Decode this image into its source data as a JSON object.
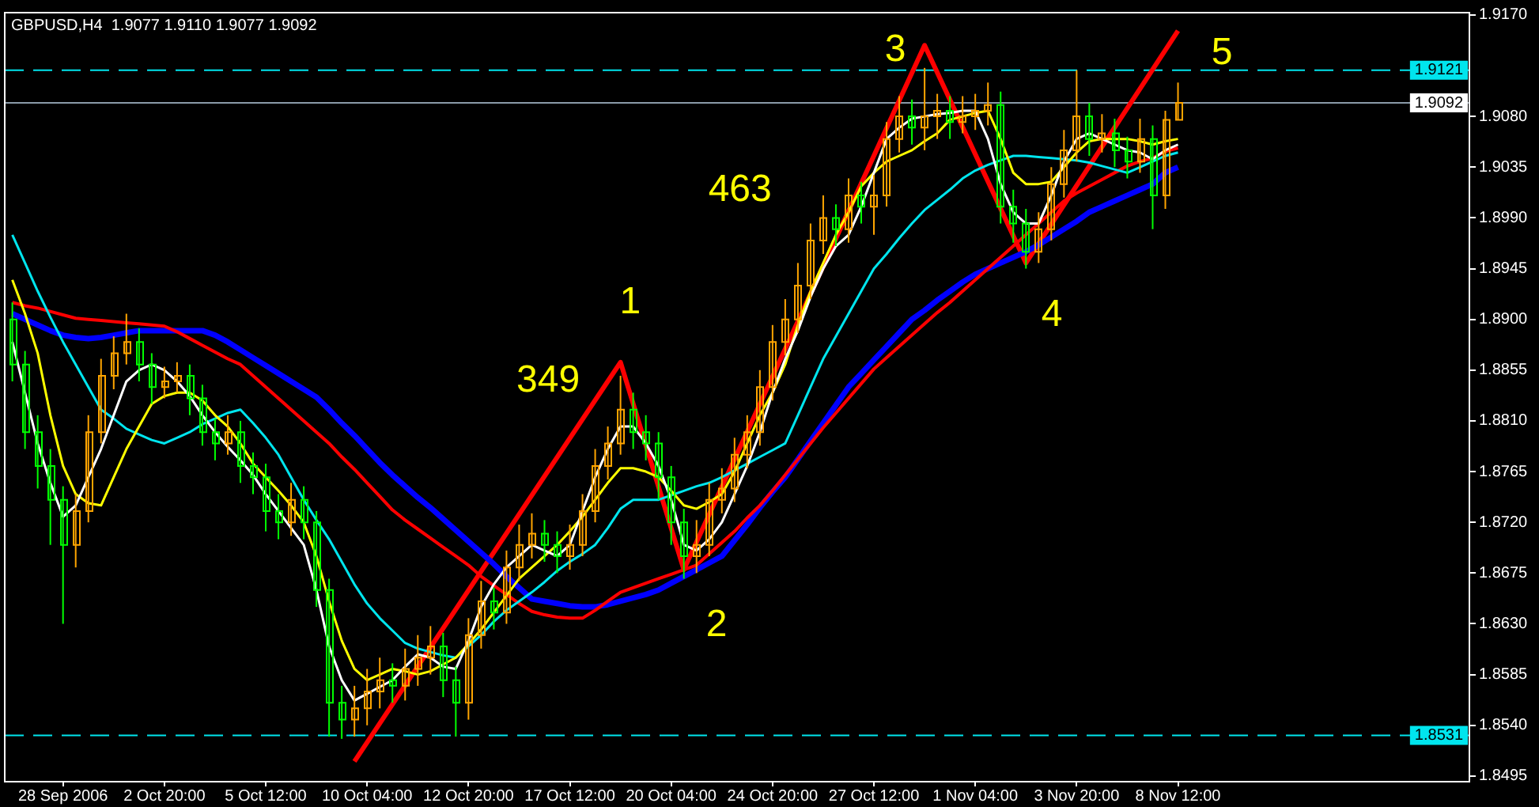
{
  "chart_data": {
    "type": "candlestick",
    "title": "GBPUSD,H4  1.9077 1.9110 1.9077 1.9092",
    "categories": [
      null,
      null,
      null,
      null,
      "28 Sep 2006",
      null,
      null,
      null,
      null,
      null,
      null,
      null,
      "2 Oct 20:00",
      null,
      null,
      null,
      null,
      null,
      null,
      null,
      "5 Oct 12:00",
      null,
      null,
      null,
      null,
      null,
      null,
      null,
      "10 Oct 04:00",
      null,
      null,
      null,
      null,
      null,
      null,
      null,
      "12 Oct 20:00",
      null,
      null,
      null,
      null,
      null,
      null,
      null,
      "17 Oct 12:00",
      null,
      null,
      null,
      null,
      null,
      null,
      null,
      "20 Oct 04:00",
      null,
      null,
      null,
      null,
      null,
      null,
      null,
      "24 Oct 20:00",
      null,
      null,
      null,
      null,
      null,
      null,
      null,
      "27 Oct 12:00",
      null,
      null,
      null,
      null,
      null,
      null,
      null,
      "1 Nov 04:00",
      null,
      null,
      null,
      null,
      null,
      null,
      null,
      "3 Nov 20:00",
      null,
      null,
      null,
      null,
      null,
      null,
      null,
      "8 Nov 12:00"
    ],
    "ohlc": [
      [
        1.89,
        1.8915,
        1.8845,
        1.886
      ],
      [
        1.886,
        1.8872,
        1.8785,
        1.88
      ],
      [
        1.88,
        1.8815,
        1.875,
        1.877
      ],
      [
        1.877,
        1.8785,
        1.87,
        1.874
      ],
      [
        1.874,
        1.8752,
        1.863,
        1.87
      ],
      [
        1.87,
        1.8745,
        1.868,
        1.873
      ],
      [
        1.873,
        1.8815,
        1.872,
        1.88
      ],
      [
        1.88,
        1.8865,
        1.879,
        1.885
      ],
      [
        1.885,
        1.8885,
        1.8838,
        1.887
      ],
      [
        1.887,
        1.8905,
        1.886,
        1.888
      ],
      [
        1.888,
        1.8892,
        1.8845,
        1.886
      ],
      [
        1.886,
        1.887,
        1.8825,
        1.884
      ],
      [
        1.884,
        1.8858,
        1.883,
        1.8845
      ],
      [
        1.8845,
        1.8862,
        1.8835,
        1.885
      ],
      [
        1.885,
        1.886,
        1.8815,
        1.883
      ],
      [
        1.883,
        1.8842,
        1.8788,
        1.88
      ],
      [
        1.88,
        1.8812,
        1.8775,
        1.879
      ],
      [
        1.879,
        1.8815,
        1.878,
        1.88
      ],
      [
        1.88,
        1.881,
        1.8755,
        1.877
      ],
      [
        1.877,
        1.8782,
        1.8745,
        1.876
      ],
      [
        1.876,
        1.8772,
        1.8712,
        1.873
      ],
      [
        1.873,
        1.8745,
        1.8705,
        1.872
      ],
      [
        1.872,
        1.8755,
        1.8708,
        1.874
      ],
      [
        1.874,
        1.8752,
        1.8705,
        1.872
      ],
      [
        1.872,
        1.873,
        1.8645,
        1.866
      ],
      [
        1.866,
        1.867,
        1.853,
        1.856
      ],
      [
        1.856,
        1.8575,
        1.8528,
        1.8545
      ],
      [
        1.8545,
        1.8575,
        1.853,
        1.8555
      ],
      [
        1.8555,
        1.859,
        1.854,
        1.857
      ],
      [
        1.857,
        1.86,
        1.8555,
        1.858
      ],
      [
        1.858,
        1.8595,
        1.856,
        1.8575
      ],
      [
        1.8575,
        1.8608,
        1.8562,
        1.859
      ],
      [
        1.859,
        1.862,
        1.8575,
        1.86
      ],
      [
        1.86,
        1.8628,
        1.8585,
        1.861
      ],
      [
        1.861,
        1.8622,
        1.8565,
        1.858
      ],
      [
        1.858,
        1.8592,
        1.853,
        1.856
      ],
      [
        1.856,
        1.8635,
        1.8545,
        1.862
      ],
      [
        1.862,
        1.8668,
        1.8608,
        1.865
      ],
      [
        1.865,
        1.8662,
        1.8625,
        1.864
      ],
      [
        1.864,
        1.8695,
        1.863,
        1.868
      ],
      [
        1.868,
        1.8718,
        1.8668,
        1.87
      ],
      [
        1.87,
        1.8728,
        1.8688,
        1.871
      ],
      [
        1.871,
        1.8722,
        1.8685,
        1.87
      ],
      [
        1.87,
        1.8712,
        1.8675,
        1.869
      ],
      [
        1.869,
        1.8718,
        1.8678,
        1.87
      ],
      [
        1.87,
        1.8745,
        1.869,
        1.873
      ],
      [
        1.873,
        1.8785,
        1.872,
        1.877
      ],
      [
        1.877,
        1.8805,
        1.8758,
        1.879
      ],
      [
        1.879,
        1.885,
        1.878,
        1.882
      ],
      [
        1.882,
        1.8835,
        1.8785,
        1.88
      ],
      [
        1.88,
        1.8815,
        1.8775,
        1.879
      ],
      [
        1.879,
        1.88,
        1.874,
        1.876
      ],
      [
        1.876,
        1.877,
        1.87,
        1.872
      ],
      [
        1.872,
        1.8732,
        1.867,
        1.869
      ],
      [
        1.869,
        1.8722,
        1.8675,
        1.87
      ],
      [
        1.87,
        1.8755,
        1.869,
        1.874
      ],
      [
        1.874,
        1.8768,
        1.8728,
        1.875
      ],
      [
        1.875,
        1.8795,
        1.8738,
        1.878
      ],
      [
        1.878,
        1.8815,
        1.8768,
        1.88
      ],
      [
        1.88,
        1.8855,
        1.8788,
        1.884
      ],
      [
        1.884,
        1.8895,
        1.8828,
        1.888
      ],
      [
        1.888,
        1.8918,
        1.8868,
        1.89
      ],
      [
        1.89,
        1.895,
        1.8888,
        1.893
      ],
      [
        1.893,
        1.8985,
        1.8918,
        1.897
      ],
      [
        1.897,
        1.901,
        1.8958,
        1.899
      ],
      [
        1.899,
        1.9002,
        1.8965,
        1.898
      ],
      [
        1.898,
        1.9025,
        1.8968,
        1.901
      ],
      [
        1.901,
        1.9022,
        1.8985,
        1.9
      ],
      [
        1.9,
        1.9028,
        1.8975,
        1.901
      ],
      [
        1.901,
        1.9075,
        1.9,
        1.906
      ],
      [
        1.906,
        1.9098,
        1.9048,
        1.908
      ],
      [
        1.908,
        1.9095,
        1.9055,
        1.907
      ],
      [
        1.907,
        1.9123,
        1.905,
        1.908
      ],
      [
        1.908,
        1.91,
        1.906,
        1.9085
      ],
      [
        1.9085,
        1.9098,
        1.906,
        1.9075
      ],
      [
        1.9075,
        1.9098,
        1.9065,
        1.908
      ],
      [
        1.908,
        1.91,
        1.9068,
        1.9085
      ],
      [
        1.9085,
        1.911,
        1.9072,
        1.909
      ],
      [
        1.909,
        1.9102,
        1.8985,
        1.9
      ],
      [
        1.9,
        1.9015,
        1.8968,
        1.8985
      ],
      [
        1.8985,
        1.8998,
        1.8945,
        1.896
      ],
      [
        1.896,
        1.8995,
        1.895,
        1.898
      ],
      [
        1.898,
        1.9035,
        1.897,
        1.902
      ],
      [
        1.902,
        1.9068,
        1.9008,
        1.905
      ],
      [
        1.905,
        1.9121,
        1.904,
        1.908
      ],
      [
        1.908,
        1.9092,
        1.9045,
        1.906
      ],
      [
        1.906,
        1.9082,
        1.9048,
        1.9065
      ],
      [
        1.9065,
        1.9078,
        1.9035,
        1.905
      ],
      [
        1.905,
        1.9062,
        1.9025,
        1.904
      ],
      [
        1.904,
        1.9078,
        1.903,
        1.906
      ],
      [
        1.906,
        1.9072,
        1.898,
        1.901
      ],
      [
        1.901,
        1.9085,
        1.8998,
        1.9077
      ],
      [
        1.9077,
        1.911,
        1.9077,
        1.9092
      ]
    ],
    "colors": [
      "#00ff00",
      "#00ff00",
      "#00ff00",
      "#00ff00",
      "#00ff00",
      "#ffa500",
      "#ffa500",
      "#ffa500",
      "#ffa500",
      "#ffa500",
      "#00ff00",
      "#00ff00",
      "#ffa500",
      "#ffa500",
      "#00ff00",
      "#00ff00",
      "#00ff00",
      "#ffa500",
      "#00ff00",
      "#00ff00",
      "#00ff00",
      "#00ff00",
      "#ffa500",
      "#00ff00",
      "#00ff00",
      "#00ff00",
      "#00ff00",
      "#ffa500",
      "#ffa500",
      "#ffa500",
      "#00ff00",
      "#ffa500",
      "#ffa500",
      "#ffa500",
      "#00ff00",
      "#00ff00",
      "#ffa500",
      "#ffa500",
      "#00ff00",
      "#ffa500",
      "#ffa500",
      "#ffa500",
      "#00ff00",
      "#00ff00",
      "#ffa500",
      "#ffa500",
      "#ffa500",
      "#ffa500",
      "#ffa500",
      "#00ff00",
      "#00ff00",
      "#00ff00",
      "#00ff00",
      "#00ff00",
      "#ffa500",
      "#ffa500",
      "#ffa500",
      "#ffa500",
      "#ffa500",
      "#ffa500",
      "#ffa500",
      "#ffa500",
      "#ffa500",
      "#ffa500",
      "#ffa500",
      "#00ff00",
      "#ffa500",
      "#00ff00",
      "#ffa500",
      "#ffa500",
      "#ffa500",
      "#00ff00",
      "#ffa500",
      "#ffa500",
      "#00ff00",
      "#ffa500",
      "#ffa500",
      "#ffa500",
      "#00ff00",
      "#00ff00",
      "#00ff00",
      "#ffa500",
      "#ffa500",
      "#ffa500",
      "#ffa500",
      "#00ff00",
      "#ffa500",
      "#00ff00",
      "#00ff00",
      "#ffa500",
      "#00ff00",
      "#ffa500",
      "#ffa500"
    ],
    "series": [
      {
        "type": "line",
        "color": "#ffffff",
        "values": [
          1.888,
          1.8835,
          1.879,
          1.8755,
          1.8725,
          1.8735,
          1.876,
          1.8785,
          1.8815,
          1.8845,
          1.8855,
          1.886,
          1.8855,
          1.8845,
          1.8832,
          1.8815,
          1.88,
          1.8787,
          1.8775,
          1.8762,
          1.8745,
          1.873,
          1.8715,
          1.87,
          1.866,
          1.861,
          1.858,
          1.8562,
          1.8568,
          1.8574,
          1.858,
          1.8592,
          1.8603,
          1.86,
          1.8592,
          1.859,
          1.8615,
          1.8645,
          1.8665,
          1.868,
          1.869,
          1.87,
          1.8695,
          1.869,
          1.87,
          1.873,
          1.876,
          1.8785,
          1.8805,
          1.8805,
          1.879,
          1.877,
          1.874,
          1.87,
          1.8695,
          1.8705,
          1.872,
          1.8745,
          1.877,
          1.88,
          1.8835,
          1.8865,
          1.889,
          1.892,
          1.8945,
          1.8965,
          1.8975,
          1.9,
          1.903,
          1.906,
          1.907,
          1.9078,
          1.908,
          1.9082,
          1.9083,
          1.9085,
          1.9085,
          1.906,
          1.902,
          1.8995,
          1.8985,
          1.8985,
          1.901,
          1.904,
          1.906,
          1.9065,
          1.906,
          1.9055,
          1.905,
          1.9048,
          1.9042,
          1.905,
          1.9055
        ]
      },
      {
        "type": "line",
        "color": "#ffff00",
        "values": [
          1.8935,
          1.8905,
          1.887,
          1.8815,
          1.877,
          1.8745,
          1.8737,
          1.8735,
          1.876,
          1.8785,
          1.8805,
          1.8825,
          1.8832,
          1.8835,
          1.8835,
          1.8828,
          1.8815,
          1.8805,
          1.879,
          1.8772,
          1.876,
          1.8748,
          1.8735,
          1.872,
          1.869,
          1.865,
          1.8615,
          1.859,
          1.858,
          1.8585,
          1.859,
          1.8588,
          1.8585,
          1.8588,
          1.8594,
          1.86,
          1.8612,
          1.8625,
          1.864,
          1.8655,
          1.867,
          1.868,
          1.869,
          1.87,
          1.8712,
          1.8725,
          1.874,
          1.8755,
          1.8768,
          1.8768,
          1.8765,
          1.876,
          1.8748,
          1.8735,
          1.8732,
          1.8738,
          1.8745,
          1.8765,
          1.879,
          1.8815,
          1.8835,
          1.886,
          1.8895,
          1.8925,
          1.895,
          1.8975,
          1.8995,
          1.9018,
          1.903,
          1.904,
          1.9045,
          1.905,
          1.9058,
          1.9065,
          1.9077,
          1.908,
          1.9083,
          1.9085,
          1.906,
          1.903,
          1.902,
          1.902,
          1.9022,
          1.9035,
          1.9048,
          1.9058,
          1.906,
          1.906,
          1.906,
          1.9058,
          1.9055,
          1.9058,
          1.906
        ]
      },
      {
        "type": "line",
        "color": "#00e5ee",
        "values": [
          1.8975,
          1.895,
          1.8925,
          1.8902,
          1.888,
          1.886,
          1.884,
          1.882,
          1.8812,
          1.8803,
          1.8798,
          1.8793,
          1.879,
          1.8795,
          1.88,
          1.8807,
          1.8812,
          1.8817,
          1.882,
          1.8808,
          1.8795,
          1.878,
          1.876,
          1.874,
          1.8722,
          1.8705,
          1.8685,
          1.8665,
          1.8648,
          1.8635,
          1.8624,
          1.8613,
          1.8608,
          1.8605,
          1.8602,
          1.86,
          1.861,
          1.862,
          1.8632,
          1.8642,
          1.865,
          1.8658,
          1.8667,
          1.8677,
          1.8685,
          1.8692,
          1.87,
          1.8715,
          1.8732,
          1.874,
          1.874,
          1.874,
          1.8744,
          1.8748,
          1.8752,
          1.8755,
          1.876,
          1.8766,
          1.8772,
          1.8778,
          1.8784,
          1.879,
          1.8815,
          1.884,
          1.8865,
          1.8885,
          1.8905,
          1.8925,
          1.8945,
          1.8958,
          1.8972,
          1.8985,
          1.8997,
          1.9006,
          1.9015,
          1.9025,
          1.9032,
          1.9037,
          1.9041,
          1.9045,
          1.9045,
          1.9044,
          1.9043,
          1.9042,
          1.9041,
          1.9039,
          1.9036,
          1.9033,
          1.903,
          1.9035,
          1.904,
          1.9045,
          1.9048
        ]
      },
      {
        "type": "line",
        "color": "#ff0000",
        "values": [
          1.8915,
          1.8912,
          1.891,
          1.8907,
          1.8904,
          1.8901,
          1.89,
          1.8899,
          1.8898,
          1.8897,
          1.8896,
          1.8895,
          1.8894,
          1.8889,
          1.8883,
          1.8877,
          1.8871,
          1.8865,
          1.886,
          1.885,
          1.884,
          1.883,
          1.882,
          1.881,
          1.88,
          1.879,
          1.8778,
          1.8767,
          1.8755,
          1.8743,
          1.8731,
          1.8722,
          1.8714,
          1.8706,
          1.8698,
          1.869,
          1.8682,
          1.8672,
          1.8664,
          1.8656,
          1.8648,
          1.8641,
          1.8638,
          1.8636,
          1.8635,
          1.8635,
          1.8642,
          1.865,
          1.8658,
          1.8662,
          1.8666,
          1.867,
          1.8674,
          1.8678,
          1.8682,
          1.8692,
          1.8702,
          1.8712,
          1.8724,
          1.8735,
          1.8748,
          1.8762,
          1.8776,
          1.879,
          1.8804,
          1.8817,
          1.883,
          1.8843,
          1.8856,
          1.8866,
          1.8876,
          1.8886,
          1.8896,
          1.8906,
          1.8915,
          1.8925,
          1.8935,
          1.8945,
          1.8955,
          1.8965,
          1.8975,
          1.8985,
          1.8995,
          1.9005,
          1.9012,
          1.9018,
          1.9024,
          1.903,
          1.9036,
          1.904,
          1.9043,
          1.9049,
          1.9052
        ]
      },
      {
        "type": "line",
        "color": "#0000ff",
        "values": [
          1.8905,
          1.89,
          1.8895,
          1.889,
          1.8886,
          1.8884,
          1.8883,
          1.8884,
          1.8886,
          1.8888,
          1.889,
          1.889,
          1.889,
          1.889,
          1.889,
          1.889,
          1.8886,
          1.888,
          1.8873,
          1.8866,
          1.8859,
          1.8852,
          1.8845,
          1.8838,
          1.8831,
          1.882,
          1.8808,
          1.8797,
          1.8785,
          1.8773,
          1.8762,
          1.8752,
          1.8742,
          1.8733,
          1.8723,
          1.8713,
          1.8703,
          1.8693,
          1.8683,
          1.8672,
          1.8662,
          1.8652,
          1.865,
          1.8648,
          1.8646,
          1.8645,
          1.8645,
          1.8647,
          1.865,
          1.8653,
          1.8656,
          1.866,
          1.8666,
          1.8672,
          1.8678,
          1.8684,
          1.869,
          1.8704,
          1.8718,
          1.8733,
          1.8747,
          1.876,
          1.8776,
          1.8792,
          1.8808,
          1.8824,
          1.884,
          1.8852,
          1.8864,
          1.8876,
          1.8888,
          1.89,
          1.8908,
          1.8917,
          1.8925,
          1.8933,
          1.894,
          1.8945,
          1.895,
          1.8955,
          1.896,
          1.8966,
          1.8973,
          1.898,
          1.8987,
          1.8995,
          1.9,
          1.9005,
          1.901,
          1.9015,
          1.902,
          1.903,
          1.9035
        ]
      },
      {
        "type": "line",
        "color": "#ff0000",
        "values": [
          null,
          null,
          null,
          null,
          null,
          null,
          null,
          null,
          null,
          null,
          null,
          null,
          null,
          null,
          null,
          null,
          null,
          null,
          null,
          null,
          null,
          null,
          null,
          null,
          null,
          null,
          null,
          1.8508,
          null,
          null,
          null,
          null,
          null,
          null,
          null,
          null,
          null,
          null,
          null,
          null,
          null,
          null,
          null,
          null,
          null,
          null,
          null,
          null,
          1.8862,
          null,
          null,
          null,
          null,
          1.8678,
          null,
          null,
          null,
          null,
          null,
          null,
          null,
          null,
          null,
          null,
          null,
          null,
          null,
          null,
          null,
          null,
          null,
          null,
          1.9143,
          null,
          null,
          null,
          null,
          null,
          null,
          null,
          1.895,
          null,
          null,
          null,
          null,
          null,
          null,
          null,
          null,
          null,
          null,
          null,
          1.9156
        ]
      }
    ],
    "ylim": [
      1.849,
      1.9172
    ],
    "yticks": [
      1.8495,
      {
        "value": 1.854,
        "label": "1.8540"
      },
      1.8585,
      {
        "value": 1.863,
        "label": "1.8630"
      },
      1.8675,
      {
        "value": 1.872,
        "label": "1.8720"
      },
      1.8765,
      {
        "value": 1.881,
        "label": "1.8810"
      },
      1.8855,
      {
        "value": 1.89,
        "label": "1.8900"
      },
      1.8945,
      {
        "value": 1.899,
        "label": "1.8990"
      },
      1.9035,
      {
        "value": 1.908,
        "label": "1.9080"
      },
      {
        "value": 1.917,
        "label": "1.9170"
      }
    ],
    "ref_lines": [
      {
        "axis": "y",
        "value": 1.9121,
        "label": "1.9121",
        "color": "#00e5ee",
        "line_style": "dashed"
      },
      {
        "axis": "y",
        "value": 1.9092,
        "label": "1.9092",
        "color": "#8a9aa8",
        "line_style": "solid"
      },
      {
        "axis": "y",
        "value": 1.8531,
        "label": "1.8531",
        "color": "#00e5ee",
        "line_style": "dashed"
      }
    ],
    "annotations": [
      "349",
      "463",
      "1",
      "2",
      "3",
      "4",
      "5"
    ],
    "grid": false,
    "legend": false
  }
}
